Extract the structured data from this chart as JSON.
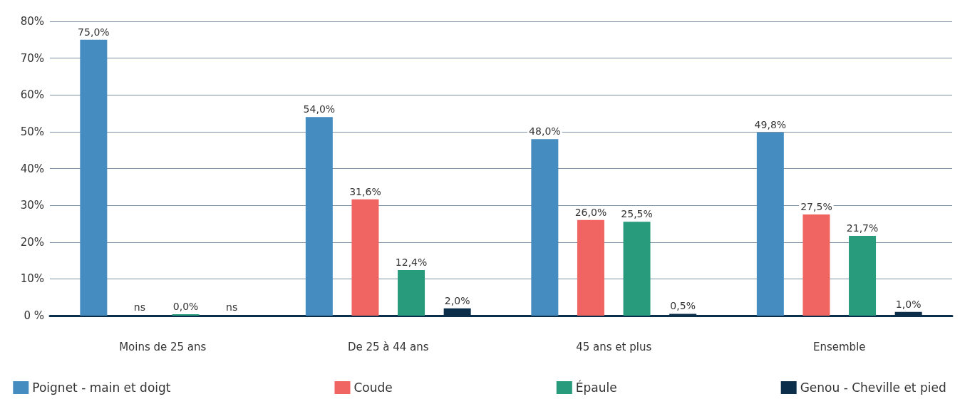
{
  "chart_data": {
    "type": "bar",
    "categories": [
      "Moins de 25 ans",
      "De 25 à 44 ans",
      "45 ans et plus",
      "Ensemble"
    ],
    "series": [
      {
        "name": "Poignet - main et doigt",
        "color": "#458dc0",
        "values": [
          75.0,
          54.0,
          48.0,
          49.8
        ],
        "value_labels": [
          "75,0%",
          "54,0%",
          "48,0%",
          "49,8%"
        ]
      },
      {
        "name": "Coude",
        "color": "#f06461",
        "values": [
          null,
          31.6,
          26.0,
          27.5
        ],
        "value_labels": [
          "ns",
          "31,6%",
          "26,0%",
          "27,5%"
        ]
      },
      {
        "name": "Épaule",
        "color": "#279b7c",
        "values": [
          0.0,
          12.4,
          25.5,
          21.7
        ],
        "value_labels": [
          "0,0%",
          "12,4%",
          "25,5%",
          "21,7%"
        ]
      },
      {
        "name": "Genou - Cheville et pied",
        "color": "#0b2e4a",
        "values": [
          null,
          2.0,
          0.5,
          1.0
        ],
        "value_labels": [
          "ns",
          "2,0%",
          "0,5%",
          "1,0%"
        ]
      }
    ],
    "ylim": [
      0,
      80
    ],
    "yticks": [
      {
        "value": 0,
        "label": "0 %"
      },
      {
        "value": 10,
        "label": "10%"
      },
      {
        "value": 20,
        "label": "20%"
      },
      {
        "value": 30,
        "label": "30%"
      },
      {
        "value": 40,
        "label": "40%"
      },
      {
        "value": 50,
        "label": "50%"
      },
      {
        "value": 60,
        "label": "60%"
      },
      {
        "value": 70,
        "label": "70%"
      },
      {
        "value": 80,
        "label": "80%"
      }
    ],
    "grid": "y",
    "legend": "bottom"
  }
}
